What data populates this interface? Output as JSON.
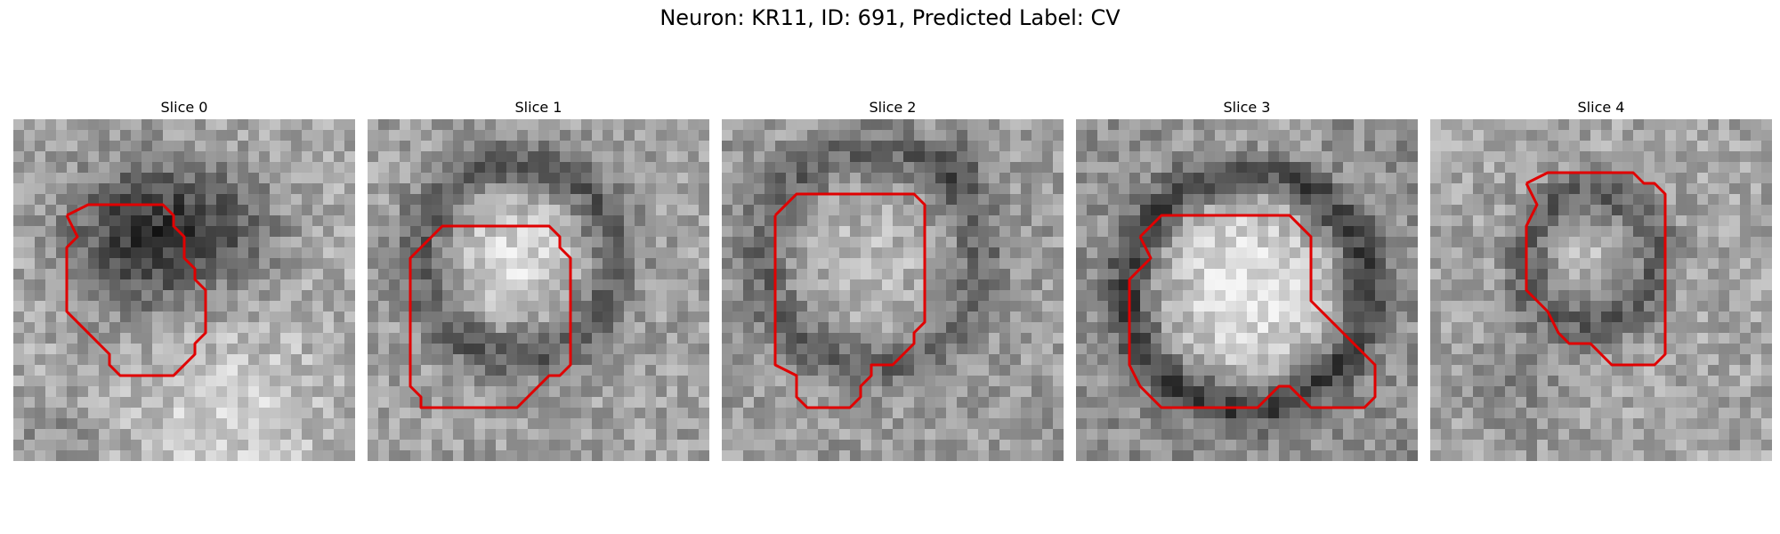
{
  "figure": {
    "title": "Neuron: KR11, ID: 691, Predicted Label: CV"
  },
  "contour_color": "#e00000",
  "panels": [
    {
      "title": "Slice 0"
    },
    {
      "title": "Slice 1"
    },
    {
      "title": "Slice 2"
    },
    {
      "title": "Slice 3"
    },
    {
      "title": "Slice 4"
    }
  ]
}
